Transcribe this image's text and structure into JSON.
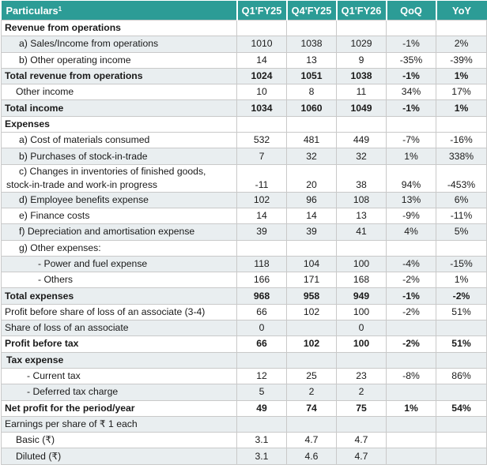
{
  "table": {
    "header": {
      "particulars": "Particulars",
      "footnote_mark": "1",
      "columns": [
        "Q1'FY25",
        "Q4'FY25",
        "Q1'FY26",
        "QoQ",
        "YoY"
      ]
    },
    "rows": [
      {
        "label": "Revenue from operations",
        "values": [
          "",
          "",
          "",
          "",
          ""
        ],
        "style": "section",
        "indent": 0,
        "shaded": false
      },
      {
        "label": "a) Sales/Income from operations",
        "values": [
          "1010",
          "1038",
          "1029",
          "-1%",
          "2%"
        ],
        "style": "normal",
        "indent": 1,
        "shaded": true
      },
      {
        "label": "b) Other operating income",
        "values": [
          "14",
          "13",
          "9",
          "-35%",
          "-39%"
        ],
        "style": "normal",
        "indent": 1,
        "shaded": false
      },
      {
        "label": "Total revenue from operations",
        "values": [
          "1024",
          "1051",
          "1038",
          "-1%",
          "1%"
        ],
        "style": "bold",
        "indent": 0,
        "shaded": true
      },
      {
        "label": "Other income",
        "values": [
          "10",
          "8",
          "11",
          "34%",
          "17%"
        ],
        "style": "normal",
        "indent": 4,
        "shaded": false
      },
      {
        "label": "Total income",
        "values": [
          "1034",
          "1060",
          "1049",
          "-1%",
          "1%"
        ],
        "style": "bold",
        "indent": 0,
        "shaded": true
      },
      {
        "label": "Expenses",
        "values": [
          "",
          "",
          "",
          "",
          ""
        ],
        "style": "section",
        "indent": 0,
        "shaded": false
      },
      {
        "label": "a) Cost of materials consumed",
        "values": [
          "532",
          "481",
          "449",
          "-7%",
          "-16%"
        ],
        "style": "normal",
        "indent": 1,
        "shaded": false
      },
      {
        "label": "b) Purchases of stock-in-trade",
        "values": [
          "7",
          "32",
          "32",
          "1%",
          "338%"
        ],
        "style": "normal",
        "indent": 1,
        "shaded": true
      },
      {
        "label": "c)  Changes in inventories of finished goods,",
        "label2": "stock-in-trade and work-in progress",
        "values": [
          "-11",
          "20",
          "38",
          "94%",
          "-453%"
        ],
        "style": "tall",
        "indent": 1,
        "shaded": false
      },
      {
        "label": "d) Employee benefits expense",
        "values": [
          "102",
          "96",
          "108",
          "13%",
          "6%"
        ],
        "style": "normal",
        "indent": 1,
        "shaded": true
      },
      {
        "label": "e) Finance costs",
        "values": [
          "14",
          "14",
          "13",
          "-9%",
          "-11%"
        ],
        "style": "normal",
        "indent": 1,
        "shaded": false
      },
      {
        "label": "f) Depreciation and amortisation expense",
        "values": [
          "39",
          "39",
          "41",
          "4%",
          "5%"
        ],
        "style": "normal",
        "indent": 1,
        "shaded": true
      },
      {
        "label": "g) Other expenses:",
        "values": [
          "",
          "",
          "",
          "",
          ""
        ],
        "style": "normal",
        "indent": 1,
        "shaded": false
      },
      {
        "label": "- Power and fuel expense",
        "values": [
          "118",
          "104",
          "100",
          "-4%",
          "-15%"
        ],
        "style": "normal",
        "indent": 3,
        "shaded": true
      },
      {
        "label": "- Others",
        "values": [
          "166",
          "171",
          "168",
          "-2%",
          "1%"
        ],
        "style": "normal",
        "indent": 3,
        "shaded": false
      },
      {
        "label": "Total expenses",
        "values": [
          "968",
          "958",
          "949",
          "-1%",
          "-2%"
        ],
        "style": "bold",
        "indent": 0,
        "shaded": true
      },
      {
        "label": "Profit before share of loss of an associate (3-4)",
        "values": [
          "66",
          "102",
          "100",
          "-2%",
          "51%"
        ],
        "style": "normal",
        "indent": 0,
        "shaded": false
      },
      {
        "label": "Share of loss of an associate",
        "values": [
          "0",
          "",
          "0",
          "",
          ""
        ],
        "style": "normal",
        "indent": 0,
        "shaded": true
      },
      {
        "label": "Profit before tax",
        "values": [
          "66",
          "102",
          "100",
          "-2%",
          "51%"
        ],
        "style": "bold",
        "indent": 0,
        "shaded": false
      },
      {
        "label": "Tax expense",
        "values": [
          "",
          "",
          "",
          "",
          ""
        ],
        "style": "bold",
        "indent": 5,
        "shaded": true
      },
      {
        "label": "- Current tax",
        "values": [
          "12",
          "25",
          "23",
          "-8%",
          "86%"
        ],
        "style": "normal",
        "indent": 2,
        "shaded": false
      },
      {
        "label": "- Deferred tax charge",
        "values": [
          "5",
          "2",
          "2",
          "",
          ""
        ],
        "style": "normal",
        "indent": 2,
        "shaded": true
      },
      {
        "label": "Net profit for the period/year",
        "values": [
          "49",
          "74",
          "75",
          "1%",
          "54%"
        ],
        "style": "bold",
        "indent": 0,
        "shaded": false
      },
      {
        "label": "Earnings per share of ₹ 1 each",
        "values": [
          "",
          "",
          "",
          "",
          ""
        ],
        "style": "normal",
        "indent": 0,
        "shaded": true
      },
      {
        "label": "Basic (₹)",
        "values": [
          "3.1",
          "4.7",
          "4.7",
          "",
          ""
        ],
        "style": "normal",
        "indent": 4,
        "shaded": false
      },
      {
        "label": "Diluted (₹)",
        "values": [
          "3.1",
          "4.6",
          "4.7",
          "",
          ""
        ],
        "style": "normal",
        "indent": 4,
        "shaded": true
      }
    ]
  },
  "colors": {
    "header_bg": "#2c9c96",
    "header_text": "#ffffff",
    "row_shade": "#e9eef0",
    "grid": "#c9c9c9"
  }
}
